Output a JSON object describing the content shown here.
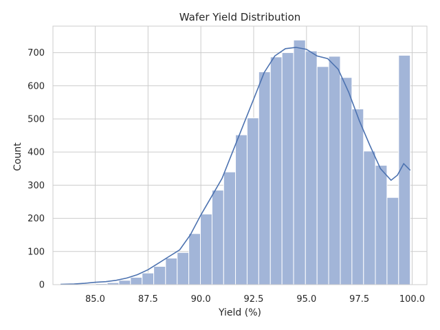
{
  "chart_data": {
    "type": "bar",
    "title": "Wafer Yield Distribution",
    "xlabel": "Yield (%)",
    "ylabel": "Count",
    "xlim": [
      83.0,
      100.7
    ],
    "ylim": [
      0,
      780
    ],
    "x_ticks": [
      85.0,
      87.5,
      90.0,
      92.5,
      95.0,
      97.5,
      100.0
    ],
    "x_tick_labels": [
      "85.0",
      "87.5",
      "90.0",
      "92.5",
      "95.0",
      "97.5",
      "100.0"
    ],
    "y_ticks": [
      0,
      100,
      200,
      300,
      400,
      500,
      600,
      700
    ],
    "y_tick_labels": [
      "0",
      "100",
      "200",
      "300",
      "400",
      "500",
      "600",
      "700"
    ],
    "grid": true,
    "bars": [
      {
        "x0": 83.36,
        "x1": 83.91,
        "count": 1
      },
      {
        "x0": 83.91,
        "x1": 84.46,
        "count": 1
      },
      {
        "x0": 84.46,
        "x1": 85.02,
        "count": 2
      },
      {
        "x0": 85.02,
        "x1": 85.57,
        "count": 3
      },
      {
        "x0": 85.57,
        "x1": 86.12,
        "count": 6
      },
      {
        "x0": 86.12,
        "x1": 86.67,
        "count": 13
      },
      {
        "x0": 86.67,
        "x1": 87.22,
        "count": 22
      },
      {
        "x0": 87.22,
        "x1": 87.77,
        "count": 35
      },
      {
        "x0": 87.77,
        "x1": 88.33,
        "count": 55
      },
      {
        "x0": 88.33,
        "x1": 88.88,
        "count": 80
      },
      {
        "x0": 88.88,
        "x1": 89.43,
        "count": 97
      },
      {
        "x0": 89.43,
        "x1": 89.98,
        "count": 154
      },
      {
        "x0": 89.98,
        "x1": 90.53,
        "count": 213
      },
      {
        "x0": 90.53,
        "x1": 91.08,
        "count": 285
      },
      {
        "x0": 91.08,
        "x1": 91.64,
        "count": 340
      },
      {
        "x0": 91.64,
        "x1": 92.19,
        "count": 452
      },
      {
        "x0": 92.19,
        "x1": 92.74,
        "count": 503
      },
      {
        "x0": 92.74,
        "x1": 93.29,
        "count": 642
      },
      {
        "x0": 93.29,
        "x1": 93.84,
        "count": 687
      },
      {
        "x0": 93.84,
        "x1": 94.39,
        "count": 700
      },
      {
        "x0": 94.39,
        "x1": 94.95,
        "count": 738
      },
      {
        "x0": 94.95,
        "x1": 95.5,
        "count": 705
      },
      {
        "x0": 95.5,
        "x1": 96.05,
        "count": 658
      },
      {
        "x0": 96.05,
        "x1": 96.6,
        "count": 689
      },
      {
        "x0": 96.6,
        "x1": 97.15,
        "count": 625
      },
      {
        "x0": 97.15,
        "x1": 97.7,
        "count": 530
      },
      {
        "x0": 97.7,
        "x1": 98.26,
        "count": 403
      },
      {
        "x0": 98.26,
        "x1": 98.81,
        "count": 360
      },
      {
        "x0": 98.81,
        "x1": 99.36,
        "count": 263
      },
      {
        "x0": 99.36,
        "x1": 99.91,
        "count": 692
      }
    ],
    "kde": {
      "x": [
        83.36,
        84.0,
        84.5,
        85.0,
        85.5,
        86.0,
        86.5,
        87.0,
        87.5,
        88.0,
        88.5,
        89.0,
        89.5,
        90.0,
        90.5,
        91.0,
        91.5,
        92.0,
        92.5,
        93.0,
        93.5,
        94.0,
        94.5,
        95.0,
        95.5,
        96.0,
        96.5,
        97.0,
        97.5,
        98.0,
        98.5,
        99.0,
        99.3,
        99.6,
        99.91
      ],
      "y": [
        1,
        2,
        4,
        7,
        9,
        13,
        20,
        30,
        45,
        65,
        85,
        105,
        150,
        210,
        265,
        320,
        400,
        480,
        560,
        640,
        690,
        712,
        716,
        710,
        690,
        682,
        650,
        580,
        495,
        420,
        350,
        315,
        330,
        365,
        345
      ]
    },
    "bar_color": "#a2b5d8",
    "bar_edge_color": "#ffffff",
    "line_color": "#4c72b0",
    "grid_color": "#cccccc"
  }
}
